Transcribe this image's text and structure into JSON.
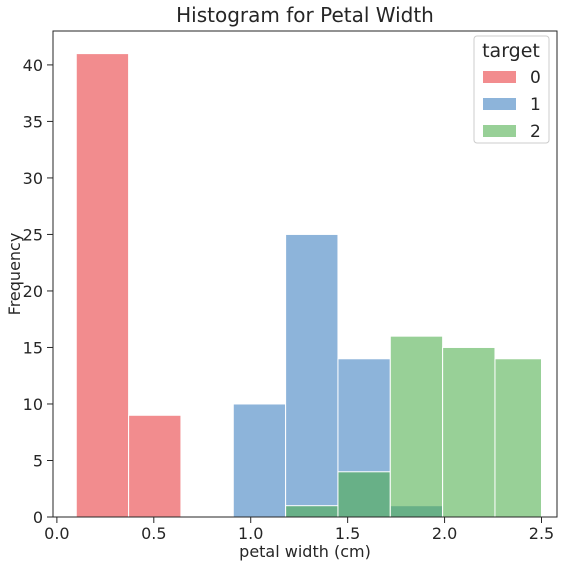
{
  "chart_data": {
    "type": "bar",
    "subtype": "histogram",
    "title": "Histogram for Petal Width",
    "xlabel": "petal width (cm)",
    "ylabel": "Frequency",
    "xlim": [
      -0.02,
      2.58
    ],
    "ylim": [
      0,
      43
    ],
    "xticks": [
      0.0,
      0.5,
      1.0,
      1.5,
      2.0,
      2.5
    ],
    "xtick_labels": [
      "0.0",
      "0.5",
      "1.0",
      "1.5",
      "2.0",
      "2.5"
    ],
    "yticks": [
      0,
      5,
      10,
      15,
      20,
      25,
      30,
      35,
      40
    ],
    "ytick_labels": [
      "0",
      "5",
      "10",
      "15",
      "20",
      "25",
      "30",
      "35",
      "40"
    ],
    "bin_edges": [
      0.1,
      0.37,
      0.64,
      0.91,
      1.18,
      1.45,
      1.72,
      1.99,
      2.26,
      2.5
    ],
    "grid": false,
    "legend": {
      "title": "target",
      "position": "top-right"
    },
    "series": [
      {
        "name": "0",
        "color": "#e8383d",
        "counts": [
          41,
          9,
          0,
          0,
          0,
          0,
          0,
          0,
          0
        ]
      },
      {
        "name": "1",
        "color": "#3a7ebf",
        "counts": [
          0,
          0,
          0,
          10,
          25,
          14,
          1,
          0,
          0
        ]
      },
      {
        "name": "2",
        "color": "#4eae4b",
        "counts": [
          0,
          0,
          0,
          0,
          1,
          4,
          16,
          15,
          14
        ]
      }
    ]
  }
}
